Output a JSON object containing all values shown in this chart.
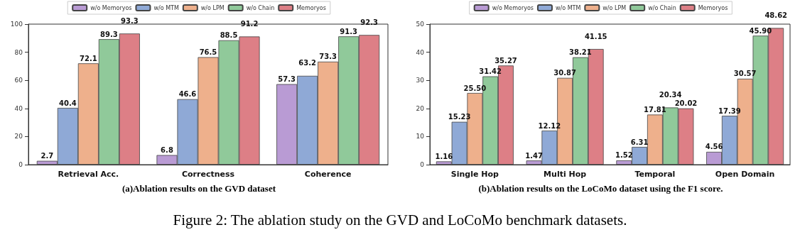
{
  "chart_data": [
    {
      "type": "bar",
      "categories": [
        "Retrieval Acc.",
        "Correctness",
        "Coherence"
      ],
      "ylim": [
        0,
        100
      ],
      "yticks": [
        0,
        20,
        40,
        60,
        80,
        100
      ],
      "legend": "top",
      "grid": false,
      "data_labels": true,
      "annotations": [
        "(a)Ablation results on the GVD dataset",
        "Figure 2: The ablation study on the GVD and LoCoMo benchmark datasets."
      ],
      "series": [
        {
          "name": "w/o Memoryos",
          "color": "#b99bd4",
          "values": [
            2.7,
            6.8,
            57.3
          ]
        },
        {
          "name": "w/o MTM",
          "color": "#8fa9d6",
          "values": [
            40.4,
            46.6,
            63.2
          ]
        },
        {
          "name": "w/o LPM",
          "color": "#eeb08c",
          "values": [
            72.1,
            76.5,
            73.3
          ]
        },
        {
          "name": "w/o Chain",
          "color": "#90c99a",
          "values": [
            89.3,
            88.5,
            91.3
          ]
        },
        {
          "name": "Memoryos",
          "color": "#dd7f86",
          "values": [
            93.3,
            91.2,
            92.3
          ]
        }
      ]
    },
    {
      "type": "bar",
      "categories": [
        "Single Hop",
        "Multi Hop",
        "Temporal",
        "Open Domain"
      ],
      "ylim": [
        0,
        50
      ],
      "yticks": [
        0,
        10,
        20,
        30,
        40,
        50
      ],
      "legend": "top",
      "grid": false,
      "annotations": [
        "(b)Ablation results on the LoCoMo dataset using the F1 score."
      ],
      "series": [
        {
          "name": "w/o Memoryos",
          "color": "#b99bd4",
          "values": [
            1.16,
            1.47,
            1.52,
            4.56
          ],
          "value_labels": [
            "1.16",
            "1.47",
            "1.52",
            "4.56"
          ]
        },
        {
          "name": "w/o MTM",
          "color": "#8fa9d6",
          "values": [
            15.23,
            12.12,
            6.31,
            17.39
          ],
          "value_labels": [
            "15.23",
            "12.12",
            "6.31",
            "17.39"
          ]
        },
        {
          "name": "w/o LPM",
          "color": "#eeb08c",
          "values": [
            25.5,
            30.87,
            17.81,
            30.57
          ],
          "value_labels": [
            "25.50",
            "30.87",
            "17.81",
            "30.57"
          ]
        },
        {
          "name": "w/o Chain",
          "color": "#90c99a",
          "values": [
            31.42,
            38.21,
            20.34,
            45.9
          ],
          "value_labels": [
            "31.42",
            "38.21",
            "20.34",
            "45.90"
          ]
        },
        {
          "name": "Memoryos",
          "color": "#dd7f86",
          "values": [
            35.27,
            41.15,
            20.02,
            48.62
          ],
          "value_labels": [
            "35.27",
            "41.15",
            "20.02",
            "48.62"
          ]
        }
      ]
    }
  ]
}
